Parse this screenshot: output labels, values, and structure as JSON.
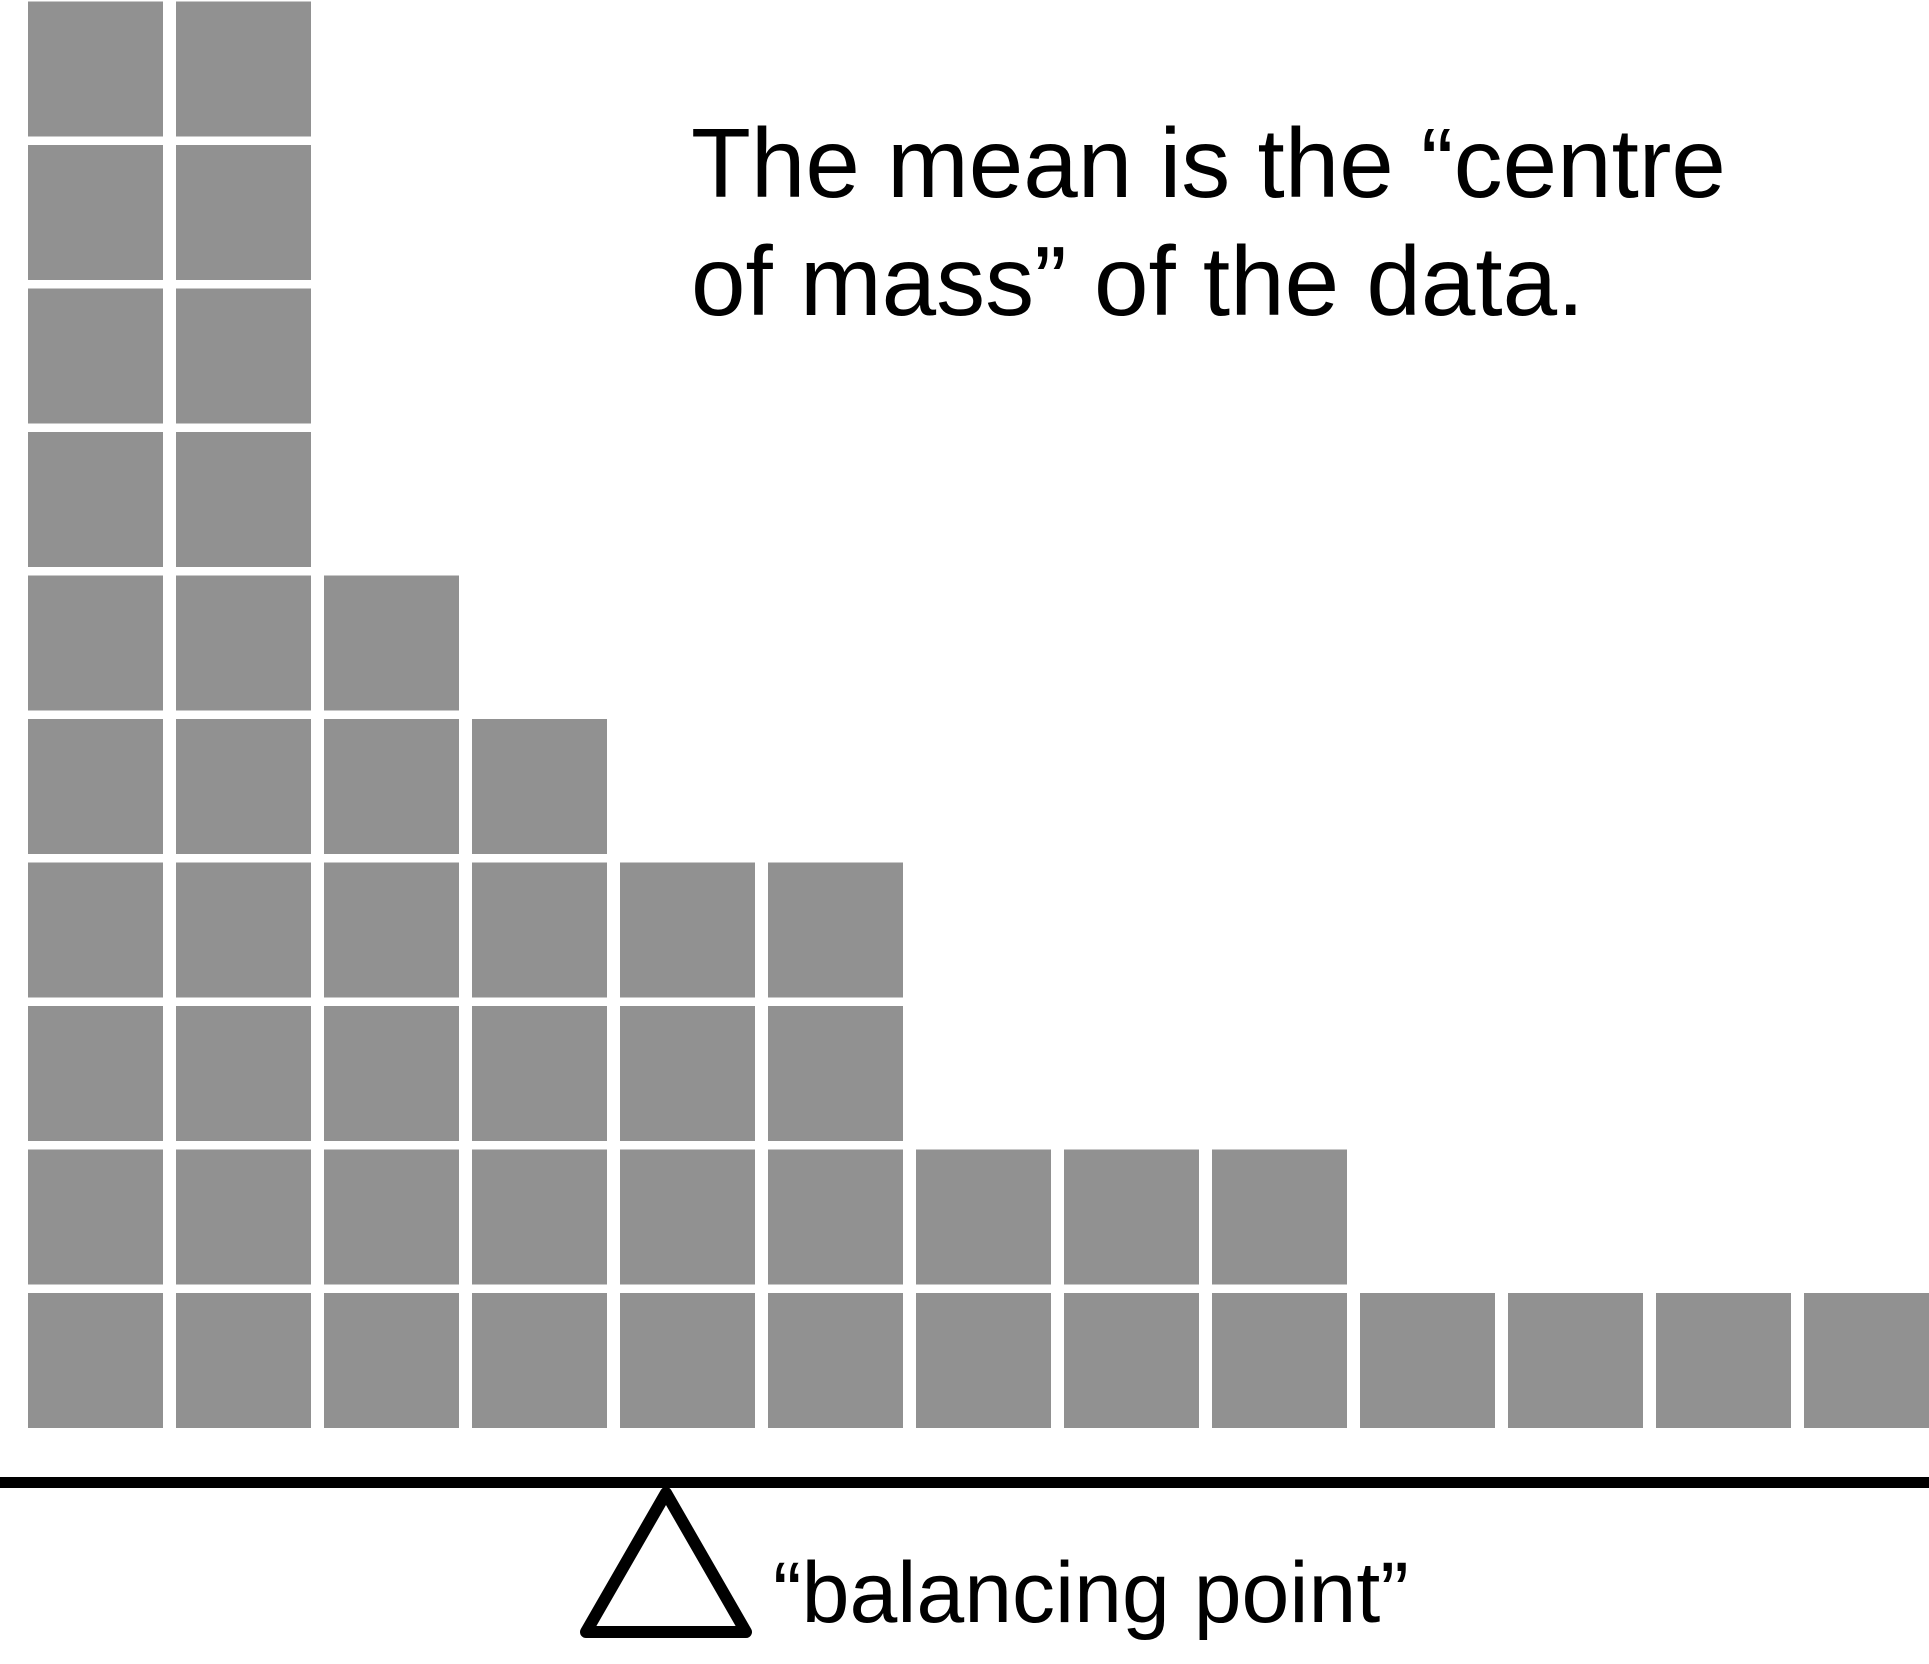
{
  "title_lines": [
    "The mean is the “centre",
    "of mass” of the data."
  ],
  "fulcrum_label": "“balancing point”",
  "blocks": {
    "column_counts": [
      10,
      10,
      6,
      5,
      4,
      4,
      2,
      2,
      2,
      1,
      1,
      1,
      1
    ],
    "fill_color": "#919191"
  },
  "beam_color": "#000000"
}
